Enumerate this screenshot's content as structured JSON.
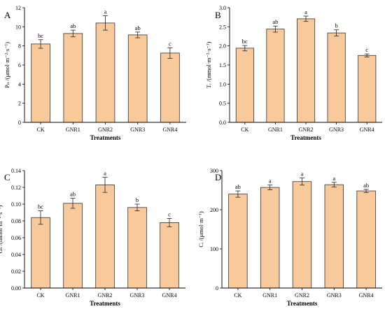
{
  "style": {
    "bar_fill": "#f8c99a",
    "bar_stroke": "#333333"
  },
  "chart_data": [
    {
      "type": "bar",
      "panel_label": "A",
      "categories": [
        "CK",
        "GNR1",
        "GNR2",
        "GNR3",
        "GNR4"
      ],
      "values": [
        8.2,
        9.3,
        10.4,
        9.15,
        7.25
      ],
      "errors": [
        0.45,
        0.35,
        0.75,
        0.3,
        0.55
      ],
      "significance": [
        "bc",
        "ab",
        "a",
        "ab",
        "c"
      ],
      "ylabel": "Pₙ /(μmol·m⁻²·s⁻¹)",
      "xlabel": "Treatments",
      "ylim": [
        0,
        12
      ],
      "yticks": [
        "0",
        "2",
        "4",
        "6",
        "8",
        "10",
        "12"
      ]
    },
    {
      "type": "bar",
      "panel_label": "B",
      "categories": [
        "CK",
        "GNR1",
        "GNR2",
        "GNR3",
        "GNR4"
      ],
      "values": [
        1.94,
        2.44,
        2.71,
        2.34,
        1.75
      ],
      "errors": [
        0.07,
        0.08,
        0.07,
        0.08,
        0.04
      ],
      "significance": [
        "bc",
        "ab",
        "a",
        "b",
        "c"
      ],
      "ylabel": "Tᵣ /(mmol·m⁻²·s⁻¹)",
      "xlabel": "Treatments",
      "ylim": [
        0,
        3
      ],
      "yticks": [
        "0.0",
        "0.5",
        "1.0",
        "1.5",
        "2.0",
        "2.5",
        "3.0"
      ]
    },
    {
      "type": "bar",
      "panel_label": "C",
      "categories": [
        "CK",
        "GNR1",
        "GNR2",
        "GNR3",
        "GNR4"
      ],
      "values": [
        0.084,
        0.101,
        0.123,
        0.096,
        0.078
      ],
      "errors": [
        0.008,
        0.006,
        0.009,
        0.004,
        0.005
      ],
      "significance": [
        "bc",
        "ab",
        "a",
        "b",
        "c"
      ],
      "ylabel": "Gₛ /(mmol·m⁻²·s⁻¹)",
      "xlabel": "Treatments",
      "ylim": [
        0,
        0.14
      ],
      "yticks": [
        "0.00",
        "0.02",
        "0.04",
        "0.06",
        "0.08",
        "0.10",
        "0.12",
        "0.14"
      ]
    },
    {
      "type": "bar",
      "panel_label": "D",
      "categories": [
        "CK",
        "GNR1",
        "GNR2",
        "GNR3",
        "GNR4"
      ],
      "values": [
        240,
        257,
        272,
        264,
        248
      ],
      "errors": [
        8,
        6,
        9,
        6,
        4
      ],
      "significance": [
        "ab",
        "a",
        "a",
        "a",
        "ab"
      ],
      "ylabel": "Cᵢ /(μmol·m⁻¹)",
      "xlabel": "Treatments",
      "ylim": [
        0,
        300
      ],
      "yticks": [
        "0",
        "100",
        "200",
        "300"
      ]
    }
  ]
}
